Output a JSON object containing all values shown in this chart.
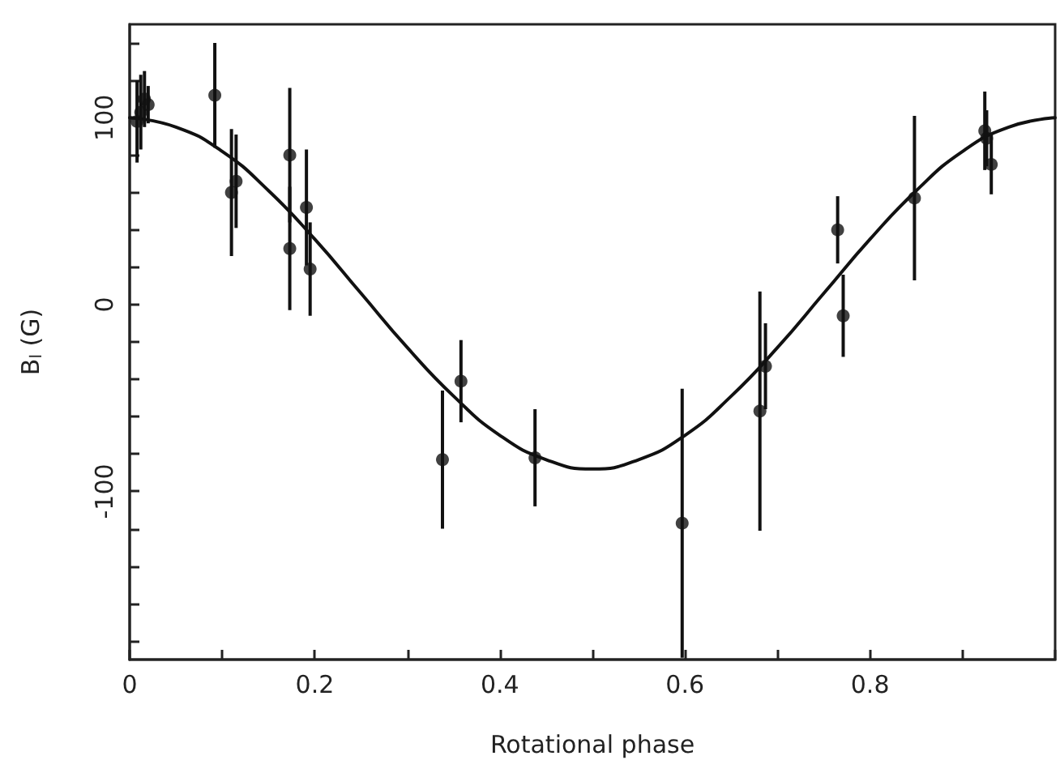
{
  "chart_data": {
    "type": "scatter",
    "xlabel": "Rotational phase",
    "ylabel": "B$_{l}$ (G)",
    "xlim": [
      0,
      1
    ],
    "ylim": [
      -190,
      150
    ],
    "xticks": [
      0,
      {
        "value": 0.1,
        "label": null
      },
      0.2,
      {
        "value": 0.3,
        "label": null
      },
      0.4,
      {
        "value": 0.5,
        "label": null
      },
      0.6,
      {
        "value": 0.7,
        "label": null
      },
      0.8,
      {
        "value": 0.9,
        "label": null
      },
      {
        "value": 1,
        "label": null
      }
    ],
    "yticks": [
      {
        "value": -180,
        "label": null
      },
      {
        "value": -160,
        "label": null
      },
      {
        "value": -140,
        "label": null
      },
      {
        "value": -120,
        "label": null
      },
      -100,
      {
        "value": -80,
        "label": null
      },
      {
        "value": -60,
        "label": null
      },
      {
        "value": -40,
        "label": null
      },
      {
        "value": -20,
        "label": null
      },
      0,
      {
        "value": 20,
        "label": null
      },
      {
        "value": 40,
        "label": null
      },
      {
        "value": 60,
        "label": null
      },
      {
        "value": 80,
        "label": null
      },
      100,
      {
        "value": 120,
        "label": null
      },
      {
        "value": 140,
        "label": null
      }
    ],
    "grid": false,
    "series": [
      {
        "color": "#111111",
        "marker": "circle",
        "x": [
          0.008,
          0.012,
          0.016,
          0.02,
          0.092,
          0.11,
          0.115,
          0.173,
          0.173,
          0.191,
          0.195,
          0.338,
          0.358,
          0.438,
          0.597,
          0.681,
          0.687,
          0.765,
          0.771,
          0.848,
          0.924,
          0.926,
          0.931
        ],
        "values": [
          98,
          103,
          110,
          107,
          112,
          60,
          66,
          80,
          30,
          52,
          19,
          -83,
          -41,
          -82,
          -117,
          -57,
          -33,
          40,
          -6,
          57,
          93,
          89,
          75
        ],
        "errors": [
          22,
          20,
          15,
          10,
          28,
          34,
          25,
          36,
          33,
          31,
          25,
          37,
          22,
          26,
          72,
          64,
          23,
          18,
          22,
          44,
          21,
          15,
          16
        ]
      },
      {
        "type": "line",
        "color": "#111111",
        "marker": "none",
        "line_style": "solid",
        "x": [
          0,
          0.05,
          0.1,
          0.15,
          0.2,
          0.25,
          0.3,
          0.35,
          0.4,
          0.45,
          0.5,
          0.55,
          0.6,
          0.65,
          0.7,
          0.75,
          0.8,
          0.85,
          0.9,
          0.95,
          1
        ],
        "values": [
          100,
          95,
          82,
          61,
          35,
          6,
          -23,
          -49,
          -70,
          -83,
          -88,
          -83,
          -70,
          -49,
          -23,
          6,
          35,
          61,
          82,
          95,
          100
        ]
      }
    ]
  }
}
